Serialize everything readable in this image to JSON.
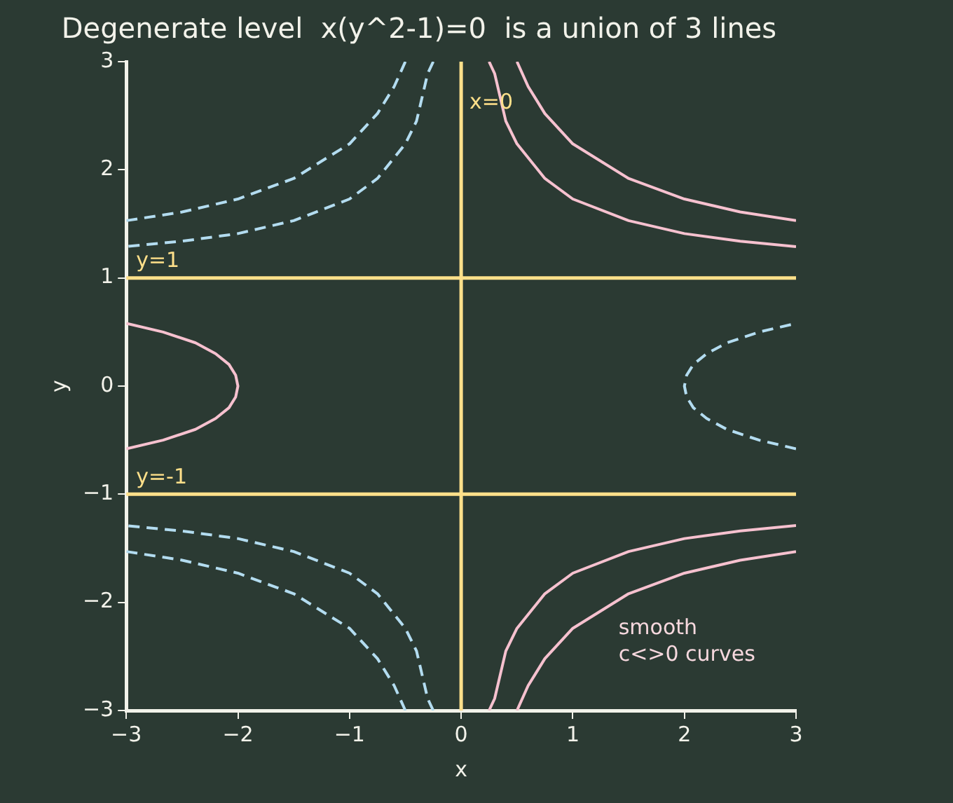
{
  "chart_data": {
    "type": "line",
    "title": "Degenerate level  x(y^2-1)=0  is a union of 3 lines",
    "xlabel": "x",
    "ylabel": "y",
    "xlim": [
      -3,
      3
    ],
    "ylim": [
      -3,
      3
    ],
    "xticks": [
      -3,
      -2,
      -1,
      0,
      1,
      2,
      3
    ],
    "yticks": [
      -3,
      -2,
      -1,
      0,
      1,
      2,
      3
    ],
    "grid": false,
    "legend": false,
    "marker": "none",
    "series": [
      {
        "color": "#f6c1cf",
        "line_style": "solid",
        "x": [
          -3,
          -2.67,
          -2.38,
          -2.2,
          -2.08,
          -2.02,
          -2,
          -2.02,
          -2.08,
          -2.2,
          -2.38,
          -2.67,
          -3
        ],
        "values": [
          -0.58,
          -0.5,
          -0.4,
          -0.3,
          -0.2,
          -0.1,
          0,
          0.1,
          0.2,
          0.3,
          0.4,
          0.5,
          0.58
        ]
      },
      {
        "color": "#f6c1cf",
        "line_style": "solid",
        "x": [
          0.25,
          0.3,
          0.4,
          0.5,
          0.75,
          1,
          1.5,
          2,
          2.5,
          3
        ],
        "values": [
          3,
          2.89,
          2.45,
          2.24,
          1.92,
          1.73,
          1.53,
          1.41,
          1.34,
          1.29
        ]
      },
      {
        "color": "#f6c1cf",
        "line_style": "solid",
        "x": [
          0.25,
          0.3,
          0.4,
          0.5,
          0.75,
          1,
          1.5,
          2,
          2.5,
          3
        ],
        "values": [
          -3,
          -2.89,
          -2.45,
          -2.24,
          -1.92,
          -1.73,
          -1.53,
          -1.41,
          -1.34,
          -1.29
        ]
      },
      {
        "color": "#f6c1cf",
        "line_style": "solid",
        "x": [
          0.5,
          0.6,
          0.75,
          1,
          1.5,
          2,
          2.5,
          3
        ],
        "values": [
          3,
          2.77,
          2.52,
          2.24,
          1.92,
          1.73,
          1.61,
          1.53
        ]
      },
      {
        "color": "#f6c1cf",
        "line_style": "solid",
        "x": [
          0.5,
          0.6,
          0.75,
          1,
          1.5,
          2,
          2.5,
          3
        ],
        "values": [
          -3,
          -2.77,
          -2.52,
          -2.24,
          -1.92,
          -1.73,
          -1.61,
          -1.53
        ]
      },
      {
        "color": "#b3dcf0",
        "line_style": "dashed",
        "x": [
          3,
          2.67,
          2.38,
          2.2,
          2.08,
          2.02,
          2,
          2.02,
          2.08,
          2.2,
          2.38,
          2.67,
          3
        ],
        "values": [
          -0.58,
          -0.5,
          -0.4,
          -0.3,
          -0.2,
          -0.1,
          0,
          0.1,
          0.2,
          0.3,
          0.4,
          0.5,
          0.58
        ]
      },
      {
        "color": "#b3dcf0",
        "line_style": "dashed",
        "x": [
          -0.25,
          -0.3,
          -0.4,
          -0.5,
          -0.75,
          -1,
          -1.5,
          -2,
          -2.5,
          -3
        ],
        "values": [
          3,
          2.89,
          2.45,
          2.24,
          1.92,
          1.73,
          1.53,
          1.41,
          1.34,
          1.29
        ]
      },
      {
        "color": "#b3dcf0",
        "line_style": "dashed",
        "x": [
          -0.25,
          -0.3,
          -0.4,
          -0.5,
          -0.75,
          -1,
          -1.5,
          -2,
          -2.5,
          -3
        ],
        "values": [
          -3,
          -2.89,
          -2.45,
          -2.24,
          -1.92,
          -1.73,
          -1.53,
          -1.41,
          -1.34,
          -1.29
        ]
      },
      {
        "color": "#b3dcf0",
        "line_style": "dashed",
        "x": [
          -0.5,
          -0.6,
          -0.75,
          -1,
          -1.5,
          -2,
          -2.5,
          -3
        ],
        "values": [
          3,
          2.77,
          2.52,
          2.24,
          1.92,
          1.73,
          1.61,
          1.53
        ]
      },
      {
        "color": "#b3dcf0",
        "line_style": "dashed",
        "x": [
          -0.5,
          -0.6,
          -0.75,
          -1,
          -1.5,
          -2,
          -2.5,
          -3
        ],
        "values": [
          -3,
          -2.77,
          -2.52,
          -2.24,
          -1.92,
          -1.73,
          -1.61,
          -1.53
        ]
      }
    ],
    "ref_lines": [
      {
        "axis": "x",
        "value": 0,
        "label": "x=0",
        "color": "#ffe08a"
      },
      {
        "axis": "y",
        "value": 1,
        "label": "y=1",
        "color": "#ffe08a"
      },
      {
        "axis": "y",
        "value": -1,
        "label": "y=-1",
        "color": "#ffe08a"
      }
    ],
    "annotations": [
      "smooth\nc<>0 curves"
    ]
  }
}
